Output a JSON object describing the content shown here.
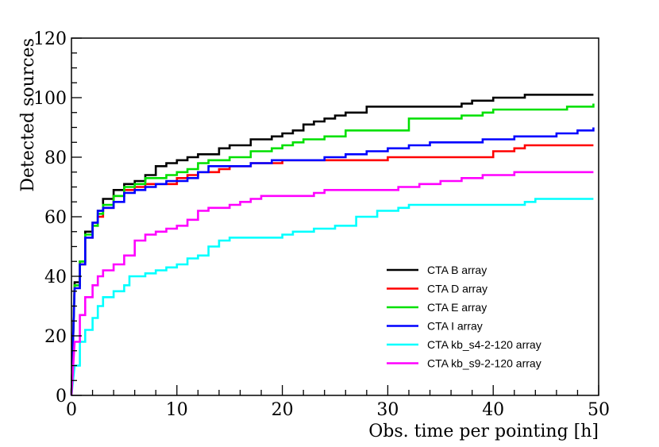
{
  "chart_data": {
    "type": "line",
    "title": "",
    "xlabel": "Obs. time per pointing [h]",
    "ylabel": "Detected sources",
    "xlim": [
      0,
      50
    ],
    "ylim": [
      0,
      120
    ],
    "x_ticks": [
      0,
      10,
      20,
      30,
      40,
      50
    ],
    "y_ticks": [
      0,
      20,
      40,
      60,
      80,
      100,
      120
    ],
    "grid": false,
    "legend_position": "lower-right",
    "series": [
      {
        "name": "CTA B array",
        "color": "#000000",
        "points": [
          [
            0,
            0
          ],
          [
            0.3,
            38
          ],
          [
            0.8,
            45
          ],
          [
            1.3,
            55
          ],
          [
            2,
            58
          ],
          [
            2.5,
            62
          ],
          [
            3,
            66
          ],
          [
            4,
            69
          ],
          [
            5,
            71
          ],
          [
            6,
            72
          ],
          [
            7,
            74
          ],
          [
            8,
            77
          ],
          [
            9,
            78
          ],
          [
            10,
            79
          ],
          [
            11,
            80
          ],
          [
            12,
            81
          ],
          [
            14,
            83
          ],
          [
            15,
            84
          ],
          [
            17,
            86
          ],
          [
            19,
            87
          ],
          [
            20,
            88
          ],
          [
            21,
            89
          ],
          [
            22,
            91
          ],
          [
            23,
            92
          ],
          [
            24,
            93
          ],
          [
            25,
            94
          ],
          [
            26,
            95
          ],
          [
            28,
            97
          ],
          [
            30,
            97
          ],
          [
            33,
            97
          ],
          [
            36,
            97
          ],
          [
            37,
            98
          ],
          [
            38,
            99
          ],
          [
            40,
            100
          ],
          [
            43,
            101
          ],
          [
            49.5,
            101
          ]
        ]
      },
      {
        "name": "CTA D array",
        "color": "#ff0000",
        "points": [
          [
            0,
            0
          ],
          [
            0.3,
            37
          ],
          [
            0.8,
            44
          ],
          [
            1.3,
            53
          ],
          [
            2,
            57
          ],
          [
            2.5,
            60
          ],
          [
            3,
            63
          ],
          [
            4,
            67
          ],
          [
            5,
            69
          ],
          [
            6,
            70
          ],
          [
            7,
            71
          ],
          [
            8,
            71
          ],
          [
            10,
            73
          ],
          [
            11,
            74
          ],
          [
            12,
            75
          ],
          [
            14,
            76
          ],
          [
            15,
            77
          ],
          [
            17,
            78
          ],
          [
            20,
            79
          ],
          [
            25,
            79
          ],
          [
            28,
            79
          ],
          [
            30,
            80
          ],
          [
            35,
            80
          ],
          [
            39,
            80
          ],
          [
            40,
            82
          ],
          [
            42,
            83
          ],
          [
            43,
            84
          ],
          [
            49.5,
            84
          ]
        ]
      },
      {
        "name": "CTA E array",
        "color": "#00e000",
        "points": [
          [
            0,
            0
          ],
          [
            0.3,
            37
          ],
          [
            0.8,
            45
          ],
          [
            1.3,
            54
          ],
          [
            2,
            57
          ],
          [
            2.5,
            61
          ],
          [
            3,
            64
          ],
          [
            4,
            67
          ],
          [
            5,
            70
          ],
          [
            6,
            71
          ],
          [
            7,
            73
          ],
          [
            9,
            74
          ],
          [
            10,
            75
          ],
          [
            11,
            76
          ],
          [
            12,
            78
          ],
          [
            13,
            79
          ],
          [
            15,
            80
          ],
          [
            17,
            82
          ],
          [
            19,
            83
          ],
          [
            20,
            84
          ],
          [
            21,
            85
          ],
          [
            22,
            86
          ],
          [
            24,
            87
          ],
          [
            26,
            89
          ],
          [
            30,
            89
          ],
          [
            32,
            93
          ],
          [
            36,
            93
          ],
          [
            37,
            94
          ],
          [
            39,
            95
          ],
          [
            40,
            96
          ],
          [
            47,
            97
          ],
          [
            49.5,
            98
          ]
        ]
      },
      {
        "name": "CTA I array",
        "color": "#0000ff",
        "points": [
          [
            0,
            0
          ],
          [
            0.3,
            36
          ],
          [
            0.8,
            44
          ],
          [
            1.3,
            53
          ],
          [
            2,
            58
          ],
          [
            2.5,
            62
          ],
          [
            3,
            63
          ],
          [
            4,
            65
          ],
          [
            5,
            68
          ],
          [
            6,
            69
          ],
          [
            7,
            70
          ],
          [
            8,
            71
          ],
          [
            9,
            72
          ],
          [
            10,
            72
          ],
          [
            11,
            73
          ],
          [
            12,
            75
          ],
          [
            13,
            77
          ],
          [
            16,
            77
          ],
          [
            17,
            78
          ],
          [
            19,
            79
          ],
          [
            21,
            79
          ],
          [
            24,
            80
          ],
          [
            26,
            81
          ],
          [
            28,
            82
          ],
          [
            30,
            83
          ],
          [
            32,
            84
          ],
          [
            34,
            85
          ],
          [
            37,
            85
          ],
          [
            39,
            86
          ],
          [
            42,
            87
          ],
          [
            46,
            88
          ],
          [
            48,
            89
          ],
          [
            49.5,
            90
          ]
        ]
      },
      {
        "name": "CTA kb_s4-2-120 array",
        "color": "#00ffff",
        "points": [
          [
            0,
            0
          ],
          [
            0.3,
            10
          ],
          [
            0.8,
            18
          ],
          [
            1.3,
            22
          ],
          [
            2,
            26
          ],
          [
            2.5,
            30
          ],
          [
            3,
            33
          ],
          [
            4,
            35
          ],
          [
            5,
            37
          ],
          [
            5.5,
            40
          ],
          [
            7,
            41
          ],
          [
            8,
            42
          ],
          [
            9,
            43
          ],
          [
            10,
            44
          ],
          [
            11,
            46
          ],
          [
            12,
            47
          ],
          [
            13,
            50
          ],
          [
            14,
            52
          ],
          [
            15,
            53
          ],
          [
            19,
            53
          ],
          [
            20,
            54
          ],
          [
            21,
            55
          ],
          [
            23,
            56
          ],
          [
            25,
            57
          ],
          [
            27,
            60
          ],
          [
            29,
            62
          ],
          [
            31,
            63
          ],
          [
            32,
            64
          ],
          [
            36,
            64
          ],
          [
            40,
            64
          ],
          [
            43,
            65
          ],
          [
            44,
            66
          ],
          [
            49.5,
            66
          ]
        ]
      },
      {
        "name": "CTA kb_s9-2-120 array",
        "color": "#ff00ff",
        "points": [
          [
            0,
            0
          ],
          [
            0.3,
            18
          ],
          [
            0.8,
            27
          ],
          [
            1.3,
            33
          ],
          [
            2,
            37
          ],
          [
            2.5,
            40
          ],
          [
            3,
            42
          ],
          [
            4,
            44
          ],
          [
            5,
            47
          ],
          [
            6,
            52
          ],
          [
            7,
            54
          ],
          [
            8,
            55
          ],
          [
            9,
            56
          ],
          [
            10,
            57
          ],
          [
            11,
            59
          ],
          [
            12,
            62
          ],
          [
            13,
            63
          ],
          [
            15,
            64
          ],
          [
            16,
            65
          ],
          [
            17,
            66
          ],
          [
            18,
            67
          ],
          [
            22,
            67
          ],
          [
            23,
            68
          ],
          [
            24,
            69
          ],
          [
            29,
            69
          ],
          [
            31,
            70
          ],
          [
            33,
            71
          ],
          [
            35,
            72
          ],
          [
            37,
            73
          ],
          [
            39,
            74
          ],
          [
            42,
            75
          ],
          [
            49.5,
            75
          ]
        ]
      }
    ]
  }
}
